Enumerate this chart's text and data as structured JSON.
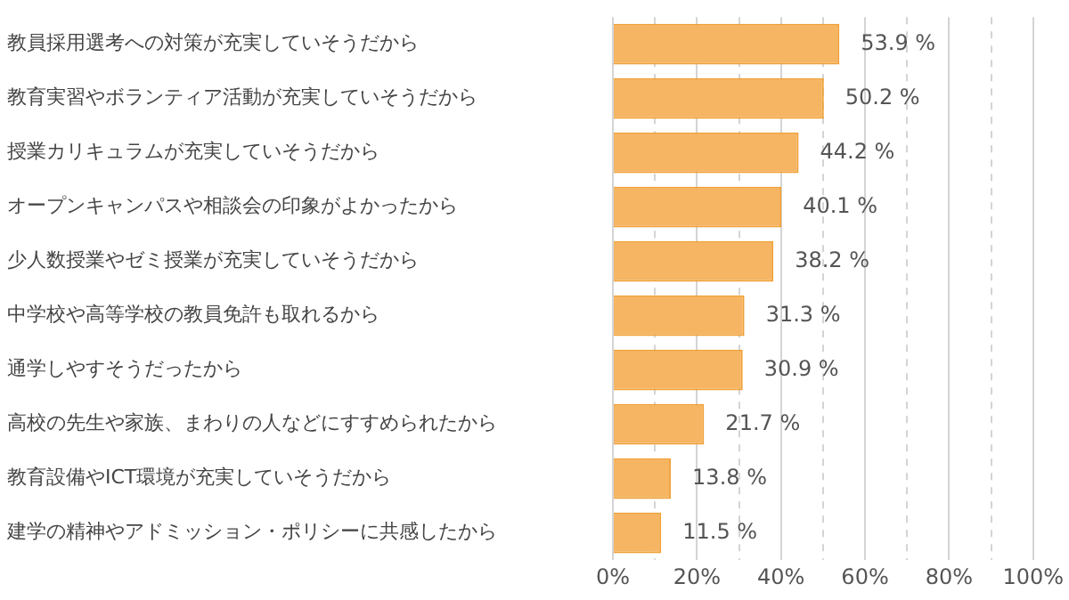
{
  "chart_data": {
    "type": "bar",
    "orientation": "horizontal",
    "categories": [
      "教員採用選考への対策が充実していそうだから",
      "教育実習やボランティア活動が充実していそうだから",
      "授業カリキュラムが充実していそうだから",
      "オープンキャンパスや相談会の印象がよかったから",
      "少人数授業やゼミ授業が充実していそうだから",
      "中学校や高等学校の教員免許も取れるから",
      "通学しやすそうだったから",
      "高校の先生や家族、まわりの人などにすすめられたから",
      "教育設備やICT環境が充実していそうだから",
      "建学の精神やアドミッション・ポリシーに共感したから"
    ],
    "values": [
      53.9,
      50.2,
      44.2,
      40.1,
      38.2,
      31.3,
      30.9,
      21.7,
      13.8,
      11.5
    ],
    "value_labels": [
      "53.9 %",
      "50.2 %",
      "44.2 %",
      "40.1 %",
      "38.2 %",
      "31.3 %",
      "30.9 %",
      "21.7 %",
      "13.8 %",
      "11.5 %"
    ],
    "color": "#f5b563",
    "xlim": [
      0,
      100
    ],
    "xticks": [
      {
        "value": 0,
        "label": "0%"
      },
      {
        "value": 10,
        "label": null
      },
      {
        "value": 20,
        "label": "20%"
      },
      {
        "value": 30,
        "label": null
      },
      {
        "value": 40,
        "label": "40%"
      },
      {
        "value": 50,
        "label": null
      },
      {
        "value": 60,
        "label": "60%"
      },
      {
        "value": 70,
        "label": null
      },
      {
        "value": 80,
        "label": "80%"
      },
      {
        "value": 90,
        "label": null
      },
      {
        "value": 100,
        "label": "100%"
      }
    ],
    "grid": "x"
  }
}
